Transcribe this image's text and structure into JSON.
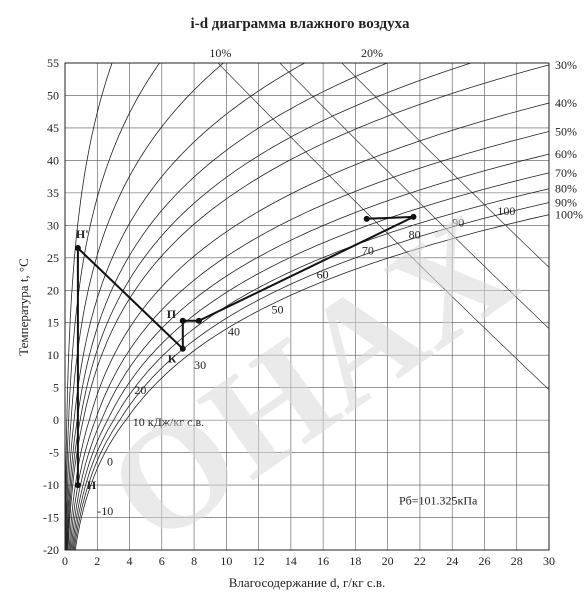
{
  "chart_data": {
    "type": "line",
    "title": "i-d диаграмма влажного воздуха",
    "xlabel": "Влагосодержание d, г/кг с.в.",
    "ylabel": "Температура t, °С",
    "xlim": [
      0,
      30
    ],
    "ylim": [
      -20,
      55
    ],
    "xticks": [
      "0",
      "2",
      "4",
      "6",
      "8",
      "10",
      "12",
      "14",
      "16",
      "18",
      "20",
      "22",
      "24",
      "26",
      "28",
      "30"
    ],
    "yticks": [
      "-20",
      "-15",
      "-10",
      "-5",
      "0",
      "5",
      "10",
      "15",
      "20",
      "25",
      "30",
      "35",
      "40",
      "45",
      "50",
      "55"
    ],
    "grid": true,
    "pressure_label": "Рб=101.325кПа",
    "rh_lines": [
      {
        "label": "10%",
        "phi": 0.1
      },
      {
        "label": "20%",
        "phi": 0.2
      },
      {
        "label": "30%",
        "phi": 0.3
      },
      {
        "label": "40%",
        "phi": 0.4
      },
      {
        "label": "50%",
        "phi": 0.5
      },
      {
        "label": "60%",
        "phi": 0.6
      },
      {
        "label": "70%",
        "phi": 0.7
      },
      {
        "label": "80%",
        "phi": 0.8
      },
      {
        "label": "90%",
        "phi": 0.9
      },
      {
        "label": "100%",
        "phi": 1.0
      }
    ],
    "extra_rh_curves": [
      0.03,
      0.06,
      0.15,
      0.25
    ],
    "enthalpy_lines": [
      -10,
      0,
      10,
      20,
      30,
      40,
      50,
      60,
      70,
      80,
      90,
      100
    ],
    "enthalpy_labels": [
      {
        "text": "-10",
        "d": 2.0,
        "t": -14.6
      },
      {
        "text": "0",
        "d": 2.6,
        "t": -7.0
      },
      {
        "text": "10 кДж/кг с.в.",
        "d": 4.2,
        "t": -0.9
      },
      {
        "text": "20",
        "d": 4.3,
        "t": 4.0
      },
      {
        "text": "30",
        "d": 8.0,
        "t": 7.9
      },
      {
        "text": "40",
        "d": 10.1,
        "t": 13.0
      },
      {
        "text": "50",
        "d": 12.8,
        "t": 16.4
      },
      {
        "text": "60",
        "d": 15.6,
        "t": 21.8
      },
      {
        "text": "70",
        "d": 18.4,
        "t": 25.5
      },
      {
        "text": "80",
        "d": 21.3,
        "t": 28.0
      },
      {
        "text": "90",
        "d": 24.0,
        "t": 29.8
      },
      {
        "text": "100",
        "d": 26.8,
        "t": 31.6
      }
    ],
    "points": [
      {
        "label": "Н'",
        "d": 0.8,
        "t": 26.5
      },
      {
        "label": "Н",
        "d": 0.8,
        "t": -10.0
      },
      {
        "label": "К",
        "d": 7.3,
        "t": 11.0
      },
      {
        "label": "П",
        "d": 7.3,
        "t": 15.3
      },
      {
        "label": "",
        "d": 8.3,
        "t": 15.3
      },
      {
        "label": "",
        "d": 18.7,
        "t": 31.0
      },
      {
        "label": "",
        "d": 21.6,
        "t": 31.3
      }
    ],
    "process_path": [
      {
        "d": 0.8,
        "t": -10.0
      },
      {
        "d": 0.8,
        "t": 26.5
      },
      {
        "d": 7.3,
        "t": 11.0
      },
      {
        "d": 7.3,
        "t": 15.3
      },
      {
        "d": 8.3,
        "t": 15.3
      },
      {
        "d": 21.6,
        "t": 31.3
      },
      {
        "d": 18.7,
        "t": 31.0
      }
    ],
    "watermark": "ОНАХ"
  }
}
